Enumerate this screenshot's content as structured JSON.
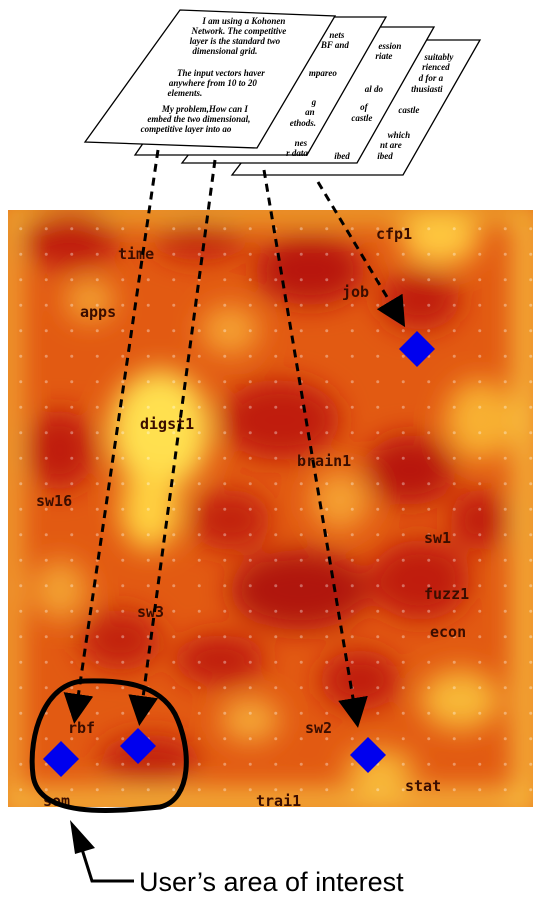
{
  "documents": [
    {
      "lines": [
        "suitably",
        "rienced",
        "d for a",
        "thusiasti",
        "",
        "castle",
        "",
        "which",
        "nt are",
        "ibed"
      ]
    },
    {
      "lines": [
        "ession",
        "riate",
        "",
        "",
        "al  do",
        "",
        "",
        "of",
        "castle",
        "",
        "ibed"
      ]
    },
    {
      "lines": [
        "nets",
        "BF and",
        "",
        "mpareo",
        "",
        "g",
        "an",
        "ethods.",
        "",
        "nes",
        "r data"
      ]
    },
    {
      "lines": [
        "I am using a Kohonen",
        "Network.  The competitive",
        "layer is the standard two",
        "dimensional grid.",
        "",
        "The input vectors haver",
        "anywhere from 10 to 20",
        "elements.",
        "",
        "My problem,How can I",
        "embed the two dimensional,",
        "competitive layer into ao"
      ]
    }
  ],
  "map_labels": [
    "time",
    "cfp1",
    "job",
    "apps",
    "digst1",
    "brain1",
    "sw16",
    "sw1",
    "fuzz1",
    "sw3",
    "econ",
    "rbf",
    "sw2",
    "stat",
    "som",
    "trai1"
  ],
  "caption": "User’s area of interest",
  "colors": {
    "heat_low": "#f0a000",
    "heat_mid": "#e25a12",
    "heat_high": "#b81508",
    "heat_bright": "#ffe040",
    "marker": "#0000ee",
    "arrow": "#000000"
  }
}
